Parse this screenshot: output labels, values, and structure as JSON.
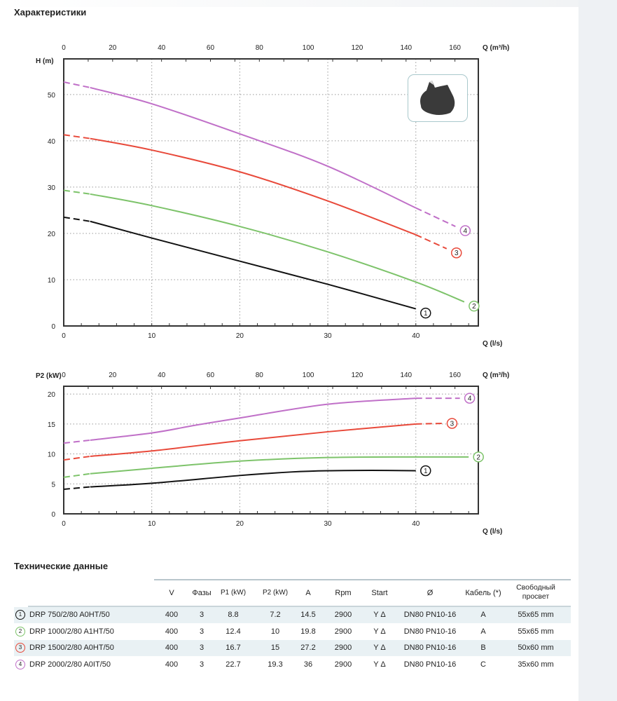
{
  "section_title": "Характеристики",
  "tech_title": "Технические данные",
  "colors": {
    "1": "#111111",
    "2": "#7dc36a",
    "3": "#e8493a",
    "4": "#c070c8"
  },
  "chart_data": [
    {
      "type": "line",
      "ylabel": "H (m)",
      "xlabel": "Q (l/s)",
      "x2label": "Q (m³/h)",
      "xlim": [
        0,
        47.1
      ],
      "ylim": [
        0,
        57.7
      ],
      "xticks": [
        "0",
        "10",
        "20",
        "30",
        "40"
      ],
      "x2ticks": [
        "0",
        "20",
        "40",
        "60",
        "80",
        "100",
        "120",
        "140",
        "160"
      ],
      "yticks": [
        "0",
        "10",
        "20",
        "30",
        "40",
        "50"
      ],
      "grid": true,
      "series": [
        {
          "name": "1",
          "color": "#111111",
          "x": [
            0,
            3,
            10,
            20,
            30,
            40
          ],
          "y": [
            23.5,
            22.6,
            19,
            14,
            9,
            3.7
          ],
          "dashed_until": 3,
          "dashed_after": null
        },
        {
          "name": "2",
          "color": "#7dc36a",
          "x": [
            0,
            3,
            10,
            20,
            30,
            40,
            45.5
          ],
          "y": [
            29.3,
            28.5,
            26,
            21.5,
            16,
            9.5,
            5.2
          ],
          "dashed_until": 3,
          "dashed_after": null
        },
        {
          "name": "3",
          "color": "#e8493a",
          "x": [
            0,
            3,
            10,
            20,
            30,
            40,
            43.5
          ],
          "y": [
            41.3,
            40.5,
            38,
            33.3,
            27,
            19.7,
            16.7
          ],
          "dashed_until": 3,
          "dashed_after": 40
        },
        {
          "name": "4",
          "color": "#c070c8",
          "x": [
            0,
            3,
            10,
            20,
            30,
            40,
            44.5
          ],
          "y": [
            52.7,
            51.5,
            48,
            41.5,
            34.5,
            25.5,
            21.5
          ],
          "dashed_until": 3,
          "dashed_after": 40
        }
      ]
    },
    {
      "type": "line",
      "ylabel": "P2 (kW)",
      "xlabel": "Q (l/s)",
      "x2label": "Q (m³/h)",
      "xlim": [
        0,
        47.1
      ],
      "ylim": [
        0,
        21.3
      ],
      "xticks": [
        "0",
        "10",
        "20",
        "30",
        "40"
      ],
      "x2ticks": [
        "0",
        "20",
        "40",
        "60",
        "80",
        "100",
        "120",
        "140",
        "160"
      ],
      "yticks": [
        "0",
        "5",
        "10",
        "15",
        "20"
      ],
      "grid": true,
      "series": [
        {
          "name": "1",
          "color": "#111111",
          "x": [
            0,
            3,
            10,
            20,
            26,
            30,
            35,
            40
          ],
          "y": [
            4.1,
            4.5,
            5.1,
            6.4,
            7.0,
            7.2,
            7.25,
            7.2
          ],
          "dashed_until": 3,
          "dashed_after": null
        },
        {
          "name": "2",
          "color": "#7dc36a",
          "x": [
            0,
            3,
            10,
            20,
            30,
            40,
            46
          ],
          "y": [
            6.1,
            6.7,
            7.6,
            8.8,
            9.4,
            9.5,
            9.5
          ],
          "dashed_until": 3,
          "dashed_after": null
        },
        {
          "name": "3",
          "color": "#e8493a",
          "x": [
            0,
            3,
            10,
            20,
            30,
            40,
            43
          ],
          "y": [
            9,
            9.6,
            10.5,
            12.2,
            13.7,
            15,
            15.1
          ],
          "dashed_until": 3,
          "dashed_after": 40
        },
        {
          "name": "4",
          "color": "#c070c8",
          "x": [
            0,
            3,
            10,
            15,
            20,
            30,
            40,
            45
          ],
          "y": [
            11.8,
            12.3,
            13.5,
            14.8,
            16,
            18.3,
            19.3,
            19.3
          ],
          "dashed_until": 3,
          "dashed_after": 40
        }
      ]
    }
  ],
  "table": {
    "headers": [
      "V",
      "Фазы",
      "P1 (kW)",
      "P2 (kW)",
      "A",
      "Rpm",
      "Start",
      "Ø",
      "Кабель (*)",
      "Свободный просвет"
    ],
    "rows": [
      {
        "num": "1",
        "model": "DRP 750/2/80 A0HT/50",
        "cells": [
          "400",
          "3",
          "8.8",
          "7.2",
          "14.5",
          "2900",
          "Y Δ",
          "DN80 PN10-16",
          "A",
          "55x65 mm"
        ]
      },
      {
        "num": "2",
        "model": "DRP 1000/2/80 A1HT/50",
        "cells": [
          "400",
          "3",
          "12.4",
          "10",
          "19.8",
          "2900",
          "Y Δ",
          "DN80 PN10-16",
          "A",
          "55x65 mm"
        ]
      },
      {
        "num": "3",
        "model": "DRP 1500/2/80 A0HT/50",
        "cells": [
          "400",
          "3",
          "16.7",
          "15",
          "27.2",
          "2900",
          "Y Δ",
          "DN80 PN10-16",
          "B",
          "50x60 mm"
        ]
      },
      {
        "num": "4",
        "model": "DRP 2000/2/80 A0IT/50",
        "cells": [
          "400",
          "3",
          "22.7",
          "19.3",
          "36",
          "2900",
          "Y Δ",
          "DN80 PN10-16",
          "C",
          "35x60 mm"
        ]
      }
    ]
  }
}
